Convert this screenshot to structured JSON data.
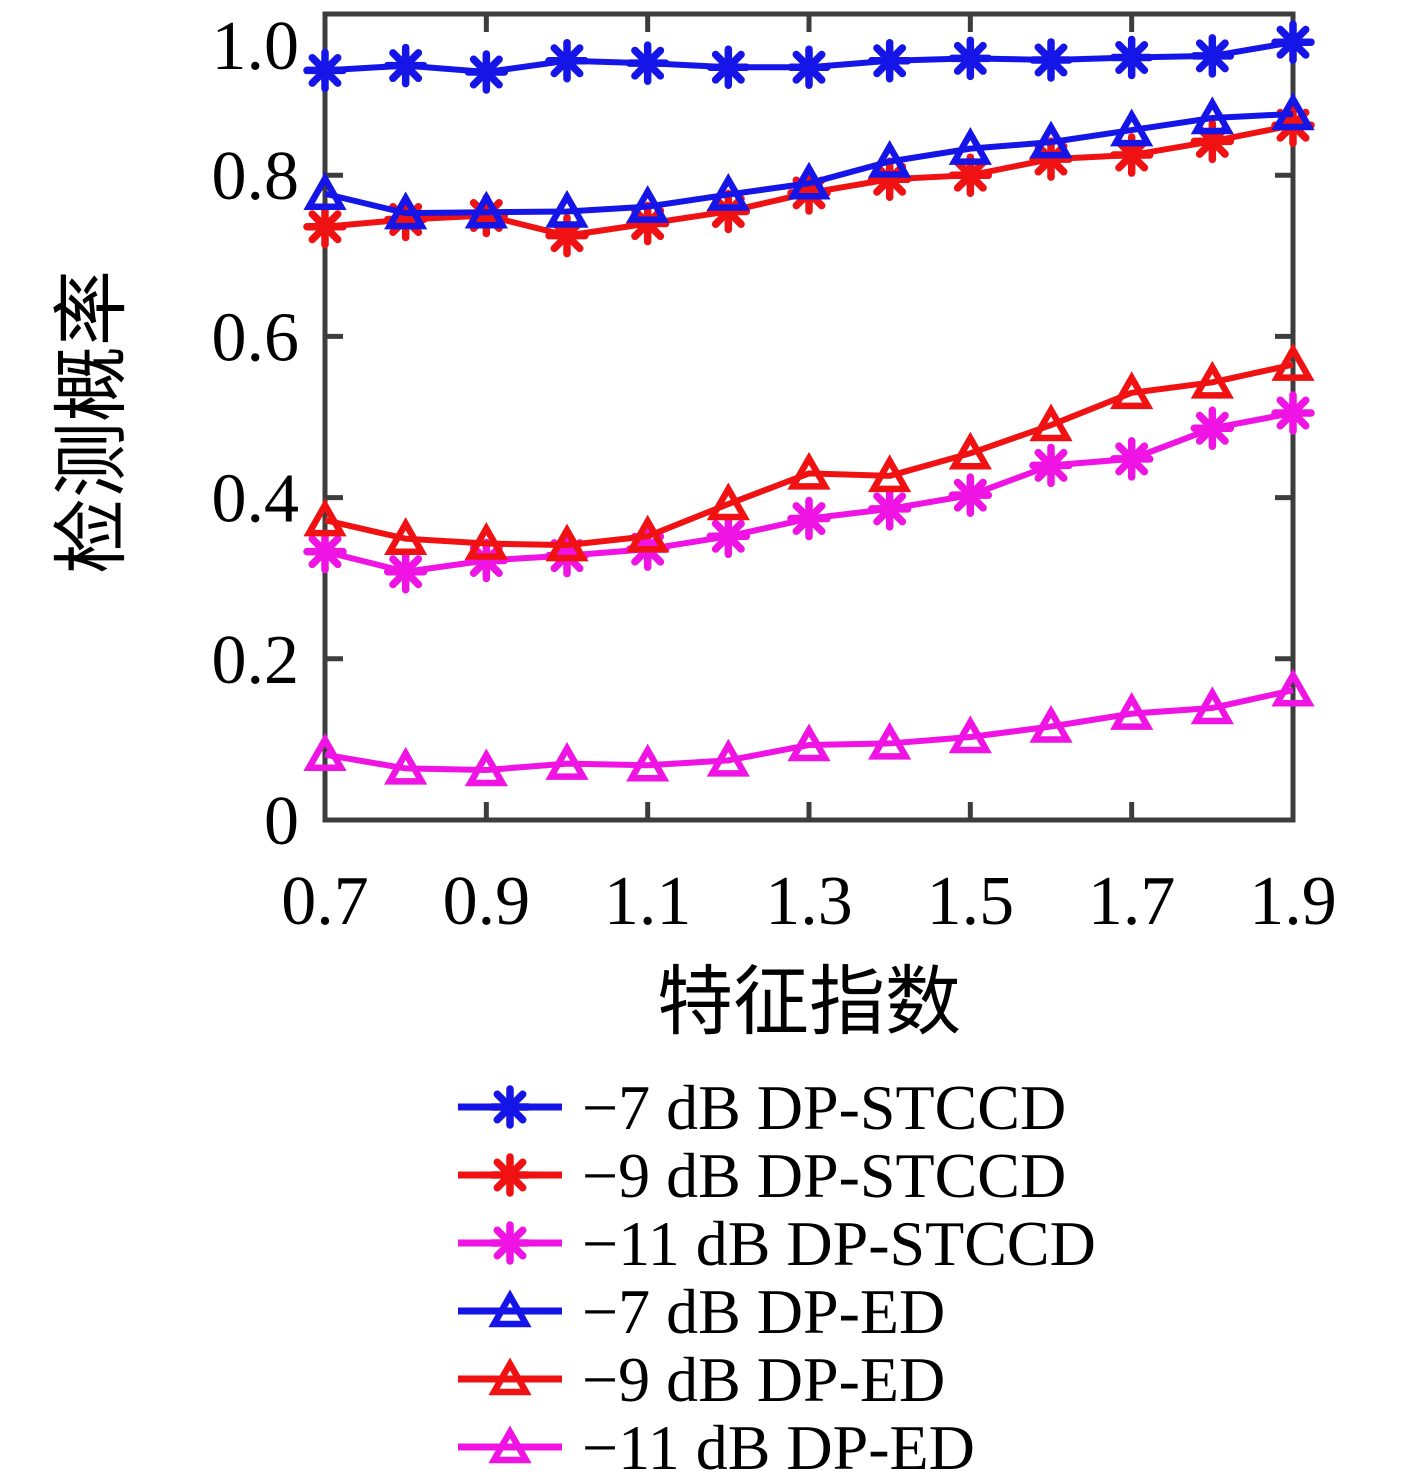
{
  "chart_data": {
    "type": "line",
    "title": "",
    "xlabel": "特征指数",
    "ylabel": "检测概率",
    "xlim": [
      0.7,
      1.9
    ],
    "ylim": [
      0,
      1
    ],
    "xticks": [
      0.7,
      0.9,
      1.1,
      1.3,
      1.5,
      1.7,
      1.9
    ],
    "xtick_labels": [
      "0.7",
      "0.9",
      "1.1",
      "1.3",
      "1.5",
      "1.7",
      "1.9"
    ],
    "yticks": [
      0,
      0.2,
      0.4,
      0.6,
      0.8,
      1
    ],
    "ytick_labels": [
      "0",
      "0.2",
      "0.4",
      "0.6",
      "0.8",
      "1.0"
    ],
    "grid": false,
    "legend_position": "below-chart-left",
    "axis_color": "#3d3d3d",
    "text_color": "#000000",
    "x": [
      0.7,
      0.8,
      0.9,
      1.0,
      1.1,
      1.2,
      1.3,
      1.4,
      1.5,
      1.6,
      1.7,
      1.8,
      1.9
    ],
    "series": [
      {
        "name": "−7 dB DP-STCCD",
        "color": "#1515e8",
        "marker": "asterisk",
        "values": [
          0.93,
          0.936,
          0.928,
          0.942,
          0.939,
          0.934,
          0.934,
          0.942,
          0.945,
          0.943,
          0.946,
          0.948,
          0.965
        ]
      },
      {
        "name": "−9 dB DP-STCCD",
        "color": "#f01212",
        "marker": "asterisk",
        "values": [
          0.736,
          0.745,
          0.75,
          0.725,
          0.74,
          0.755,
          0.778,
          0.795,
          0.8,
          0.82,
          0.825,
          0.842,
          0.862
        ]
      },
      {
        "name": "−11 dB DP-STCCD",
        "color": "#ef13e4",
        "marker": "asterisk",
        "values": [
          0.333,
          0.308,
          0.322,
          0.328,
          0.336,
          0.352,
          0.374,
          0.386,
          0.403,
          0.44,
          0.448,
          0.486,
          0.505
        ]
      },
      {
        "name": "−7 dB DP-ED",
        "color": "#1515e8",
        "marker": "triangle",
        "values": [
          0.777,
          0.753,
          0.754,
          0.755,
          0.761,
          0.776,
          0.79,
          0.817,
          0.833,
          0.841,
          0.856,
          0.871,
          0.876
        ]
      },
      {
        "name": "−9 dB DP-ED",
        "color": "#f01212",
        "marker": "triangle",
        "values": [
          0.372,
          0.349,
          0.343,
          0.341,
          0.352,
          0.392,
          0.43,
          0.427,
          0.455,
          0.49,
          0.53,
          0.543,
          0.565
        ]
      },
      {
        "name": "−11 dB DP-ED",
        "color": "#ef13e4",
        "marker": "triangle",
        "values": [
          0.081,
          0.064,
          0.062,
          0.07,
          0.068,
          0.074,
          0.093,
          0.095,
          0.103,
          0.116,
          0.132,
          0.139,
          0.161
        ]
      }
    ]
  }
}
